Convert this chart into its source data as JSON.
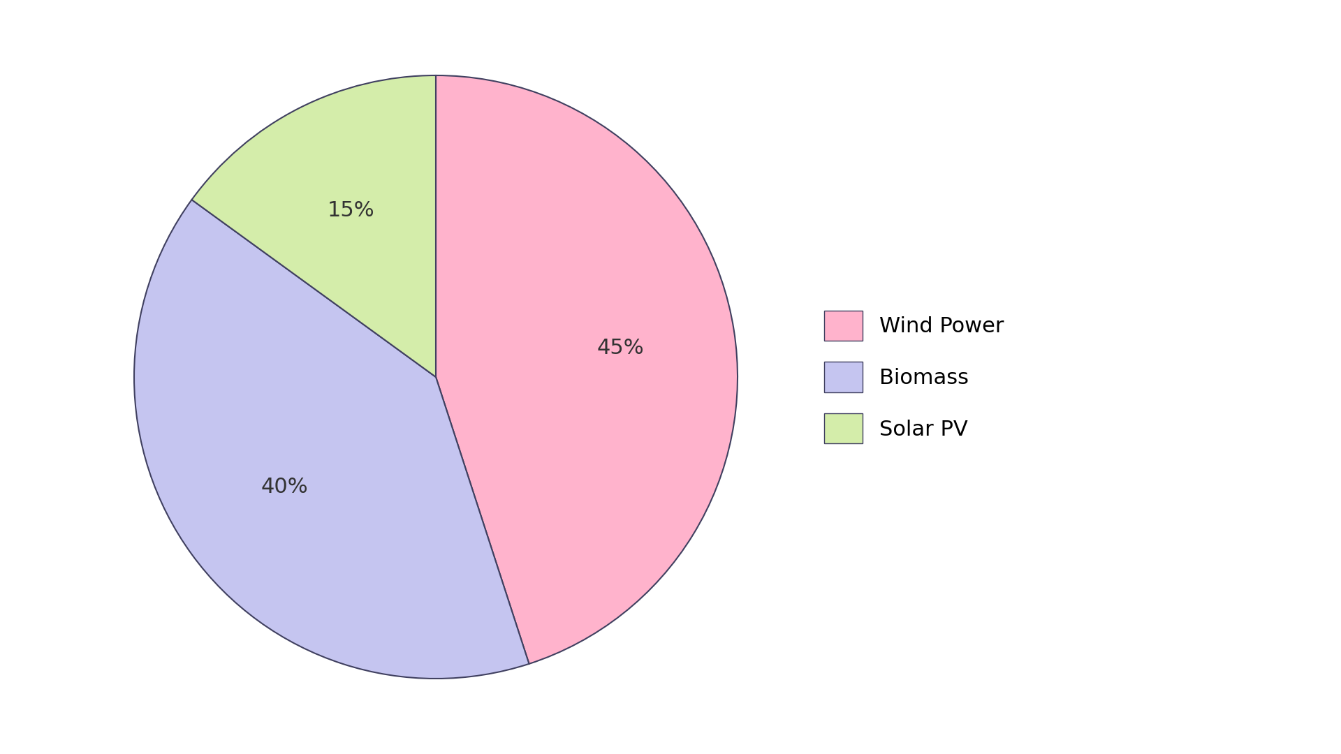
{
  "labels": [
    "Wind Power",
    "Biomass",
    "Solar PV"
  ],
  "values": [
    45,
    40,
    15
  ],
  "colors": [
    "#FFB3CC",
    "#C5C5F0",
    "#D4EDAA"
  ],
  "edge_color": "#404060",
  "edge_width": 1.5,
  "pct_labels": [
    "45%",
    "40%",
    "15%"
  ],
  "legend_labels": [
    "Wind Power",
    "Biomass",
    "Solar PV"
  ],
  "background_color": "#FFFFFF",
  "startangle": 90,
  "pct_fontsize": 22,
  "legend_fontsize": 22,
  "figsize": [
    19.2,
    10.8
  ]
}
